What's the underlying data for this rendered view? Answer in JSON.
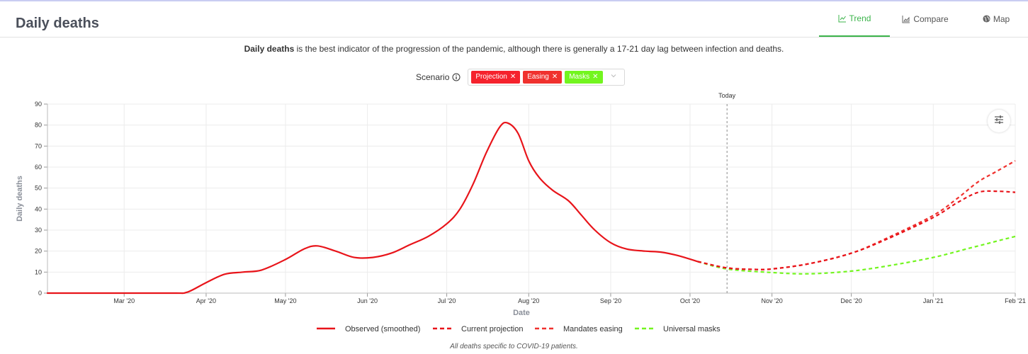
{
  "header": {
    "title": "Daily deaths",
    "tabs": [
      {
        "label": "Trend",
        "icon": "line-chart-icon",
        "active": true
      },
      {
        "label": "Compare",
        "icon": "area-chart-icon",
        "active": false
      },
      {
        "label": "Map",
        "icon": "globe-icon",
        "active": false
      }
    ]
  },
  "description": {
    "bold": "Daily deaths",
    "rest": " is the best indicator of the progression of the pandemic, although there is generally a 17-21 day lag between infection and deaths."
  },
  "scenario": {
    "label": "Scenario",
    "chips": [
      {
        "label": "Projection",
        "color": "#f5222d"
      },
      {
        "label": "Easing",
        "color": "#f0312e"
      },
      {
        "label": "Masks",
        "color": "#73f51f"
      }
    ]
  },
  "footnote": "All deaths specific to COVID-19 patients.",
  "chart_data": {
    "type": "line",
    "title": "",
    "xlabel": "Date",
    "ylabel": "Daily deaths",
    "ylim": [
      0,
      90
    ],
    "yticks": [
      0,
      10,
      20,
      30,
      40,
      50,
      60,
      70,
      80,
      90
    ],
    "xlim": [
      "2020-02-01",
      "2021-02-01"
    ],
    "xticks": [
      {
        "date": "2020-03-01",
        "label": "Mar '20"
      },
      {
        "date": "2020-04-01",
        "label": "Apr '20"
      },
      {
        "date": "2020-05-01",
        "label": "May '20"
      },
      {
        "date": "2020-06-01",
        "label": "Jun '20"
      },
      {
        "date": "2020-07-01",
        "label": "Jul '20"
      },
      {
        "date": "2020-08-01",
        "label": "Aug '20"
      },
      {
        "date": "2020-09-01",
        "label": "Sep '20"
      },
      {
        "date": "2020-10-01",
        "label": "Oct '20"
      },
      {
        "date": "2020-11-01",
        "label": "Nov '20"
      },
      {
        "date": "2020-12-01",
        "label": "Dec '20"
      },
      {
        "date": "2021-01-01",
        "label": "Jan '21"
      },
      {
        "date": "2021-02-01",
        "label": "Feb '21"
      }
    ],
    "grid": true,
    "legend_position": "bottom",
    "annotation": {
      "date": "2020-10-15",
      "label": "Today"
    },
    "series": [
      {
        "name": "Observed (smoothed)",
        "color": "#e8141a",
        "dashed": false,
        "points": [
          [
            "2020-02-01",
            0
          ],
          [
            "2020-03-01",
            0
          ],
          [
            "2020-03-20",
            0
          ],
          [
            "2020-03-25",
            0.5
          ],
          [
            "2020-04-01",
            5
          ],
          [
            "2020-04-08",
            9
          ],
          [
            "2020-04-15",
            10
          ],
          [
            "2020-04-22",
            11
          ],
          [
            "2020-05-01",
            16
          ],
          [
            "2020-05-08",
            21
          ],
          [
            "2020-05-13",
            22.5
          ],
          [
            "2020-05-20",
            20
          ],
          [
            "2020-05-27",
            17
          ],
          [
            "2020-06-03",
            17
          ],
          [
            "2020-06-10",
            19
          ],
          [
            "2020-06-17",
            23
          ],
          [
            "2020-06-24",
            27
          ],
          [
            "2020-07-01",
            33
          ],
          [
            "2020-07-06",
            40
          ],
          [
            "2020-07-11",
            52
          ],
          [
            "2020-07-16",
            67
          ],
          [
            "2020-07-21",
            79
          ],
          [
            "2020-07-24",
            81
          ],
          [
            "2020-07-28",
            76
          ],
          [
            "2020-08-01",
            63
          ],
          [
            "2020-08-05",
            55
          ],
          [
            "2020-08-10",
            49
          ],
          [
            "2020-08-16",
            44
          ],
          [
            "2020-08-21",
            37
          ],
          [
            "2020-08-26",
            30
          ],
          [
            "2020-09-01",
            24
          ],
          [
            "2020-09-07",
            21
          ],
          [
            "2020-09-14",
            20
          ],
          [
            "2020-09-20",
            19.5
          ],
          [
            "2020-09-26",
            18
          ],
          [
            "2020-10-04",
            15
          ]
        ]
      },
      {
        "name": "Current projection",
        "color": "#e8141a",
        "dashed": true,
        "points": [
          [
            "2020-10-04",
            15
          ],
          [
            "2020-10-15",
            12
          ],
          [
            "2020-10-25",
            11.3
          ],
          [
            "2020-11-01",
            11.5
          ],
          [
            "2020-11-15",
            14
          ],
          [
            "2020-12-01",
            19
          ],
          [
            "2020-12-15",
            26
          ],
          [
            "2021-01-01",
            36
          ],
          [
            "2021-01-10",
            43
          ],
          [
            "2021-01-18",
            48
          ],
          [
            "2021-01-25",
            48.5
          ],
          [
            "2021-02-01",
            48
          ]
        ]
      },
      {
        "name": "Mandates easing",
        "color": "#f0312e",
        "dashed": true,
        "points": [
          [
            "2020-10-04",
            15
          ],
          [
            "2020-10-15",
            12
          ],
          [
            "2020-10-25",
            11.3
          ],
          [
            "2020-11-01",
            11.5
          ],
          [
            "2020-11-15",
            14
          ],
          [
            "2020-12-01",
            19
          ],
          [
            "2020-12-15",
            26.5
          ],
          [
            "2021-01-01",
            37
          ],
          [
            "2021-01-10",
            45
          ],
          [
            "2021-01-18",
            53
          ],
          [
            "2021-01-25",
            58
          ],
          [
            "2021-02-01",
            63
          ]
        ]
      },
      {
        "name": "Universal masks",
        "color": "#73f51f",
        "dashed": true,
        "points": [
          [
            "2020-10-04",
            15
          ],
          [
            "2020-10-15",
            11.5
          ],
          [
            "2020-11-01",
            9.8
          ],
          [
            "2020-11-15",
            9.2
          ],
          [
            "2020-12-01",
            10.5
          ],
          [
            "2020-12-15",
            13
          ],
          [
            "2021-01-01",
            17
          ],
          [
            "2021-01-15",
            21.5
          ],
          [
            "2021-02-01",
            27
          ]
        ]
      }
    ]
  }
}
